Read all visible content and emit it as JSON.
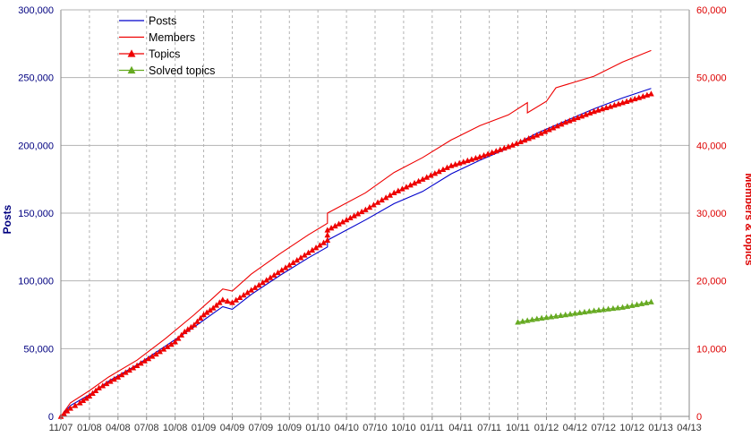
{
  "chart_data": {
    "type": "line",
    "title": "",
    "x_ticks": [
      "11/07",
      "01/08",
      "04/08",
      "07/08",
      "10/08",
      "01/09",
      "04/09",
      "07/09",
      "10/09",
      "01/10",
      "04/10",
      "07/10",
      "10/10",
      "01/11",
      "04/11",
      "07/11",
      "10/11",
      "01/12",
      "04/12",
      "07/12",
      "10/12",
      "01/13",
      "04/13"
    ],
    "y_left": {
      "label": "Posts",
      "range": [
        0,
        300000
      ],
      "ticks": [
        "0",
        "50,000",
        "100,000",
        "150,000",
        "200,000",
        "250,000",
        "300,000"
      ],
      "color": "#000080"
    },
    "y_right": {
      "label": "Members & topics",
      "range": [
        0,
        60000
      ],
      "ticks": [
        "0",
        "10,000",
        "20,000",
        "30,000",
        "40,000",
        "50,000",
        "60,000"
      ],
      "color": "#dd0000"
    },
    "grid": {
      "vertical": true,
      "horizontal": true
    },
    "legend": {
      "position": "top-left"
    },
    "series": [
      {
        "name": "Posts",
        "axis": "left",
        "style": "line",
        "color": "#0000cc",
        "points": [
          [
            "11/07",
            0
          ],
          [
            "12/07",
            8000
          ],
          [
            "02/08",
            16000
          ],
          [
            "04/08",
            26000
          ],
          [
            "07/08",
            38000
          ],
          [
            "10/08",
            52000
          ],
          [
            "01/09",
            66000
          ],
          [
            "03/09",
            76000
          ],
          [
            "04/09",
            81000
          ],
          [
            "05/09",
            79000
          ],
          [
            "07/09",
            90000
          ],
          [
            "10/09",
            104000
          ],
          [
            "01/10",
            117000
          ],
          [
            "03/10",
            125000
          ],
          [
            "03/10",
            130000
          ],
          [
            "07/10",
            145000
          ],
          [
            "10/10",
            157000
          ],
          [
            "01/11",
            166000
          ],
          [
            "04/11",
            179000
          ],
          [
            "07/11",
            189000
          ],
          [
            "10/11",
            198000
          ],
          [
            "01/12",
            209000
          ],
          [
            "04/12",
            218000
          ],
          [
            "07/12",
            227000
          ],
          [
            "10/12",
            235000
          ],
          [
            "01/13",
            242000
          ]
        ]
      },
      {
        "name": "Members",
        "axis": "right",
        "style": "line",
        "color": "#ee0000",
        "points": [
          [
            "11/07",
            0
          ],
          [
            "12/07",
            2000
          ],
          [
            "02/08",
            3800
          ],
          [
            "04/08",
            5800
          ],
          [
            "07/08",
            8300
          ],
          [
            "10/08",
            11500
          ],
          [
            "01/09",
            15000
          ],
          [
            "03/09",
            17500
          ],
          [
            "04/09",
            18800
          ],
          [
            "05/09",
            18500
          ],
          [
            "07/09",
            21000
          ],
          [
            "10/09",
            24000
          ],
          [
            "01/10",
            26800
          ],
          [
            "03/10",
            28500
          ],
          [
            "03/10",
            30000
          ],
          [
            "07/10",
            33000
          ],
          [
            "10/10",
            36000
          ],
          [
            "01/11",
            38200
          ],
          [
            "04/11",
            40800
          ],
          [
            "07/11",
            42900
          ],
          [
            "10/11",
            44500
          ],
          [
            "12/11",
            46300
          ],
          [
            "12/11",
            44800
          ],
          [
            "02/12",
            46500
          ],
          [
            "03/12",
            48500
          ],
          [
            "07/12",
            50200
          ],
          [
            "10/12",
            52300
          ],
          [
            "01/13",
            54000
          ]
        ]
      },
      {
        "name": "Topics",
        "axis": "right",
        "style": "line-markers",
        "marker": "triangle",
        "color": "#ee0000",
        "points": [
          [
            "11/07",
            0
          ],
          [
            "12/07",
            1200
          ],
          [
            "01/08",
            2000
          ],
          [
            "02/08",
            3000
          ],
          [
            "03/08",
            4200
          ],
          [
            "05/08",
            5800
          ],
          [
            "07/08",
            7500
          ],
          [
            "09/08",
            9200
          ],
          [
            "11/08",
            11000
          ],
          [
            "12/08",
            12500
          ],
          [
            "01/09",
            13500
          ],
          [
            "02/09",
            15000
          ],
          [
            "03/09",
            16000
          ],
          [
            "04/09",
            17200
          ],
          [
            "05/09",
            16800
          ],
          [
            "03/10",
            26000
          ],
          [
            "03/10",
            27500
          ],
          [
            "07/10",
            30500
          ],
          [
            "10/10",
            33000
          ],
          [
            "01/11",
            35000
          ],
          [
            "04/11",
            37000
          ],
          [
            "07/11",
            38300
          ],
          [
            "10/11",
            39800
          ],
          [
            "01/12",
            41500
          ],
          [
            "04/12",
            43400
          ],
          [
            "07/12",
            45000
          ],
          [
            "10/12",
            46300
          ],
          [
            "01/13",
            47600
          ]
        ]
      },
      {
        "name": "Solved topics",
        "axis": "right",
        "style": "line-markers",
        "marker": "triangle",
        "color": "#66aa22",
        "points": [
          [
            "11/11",
            13900
          ],
          [
            "01/12",
            14400
          ],
          [
            "04/12",
            15000
          ],
          [
            "07/12",
            15600
          ],
          [
            "10/12",
            16100
          ],
          [
            "01/13",
            16900
          ]
        ]
      }
    ]
  }
}
